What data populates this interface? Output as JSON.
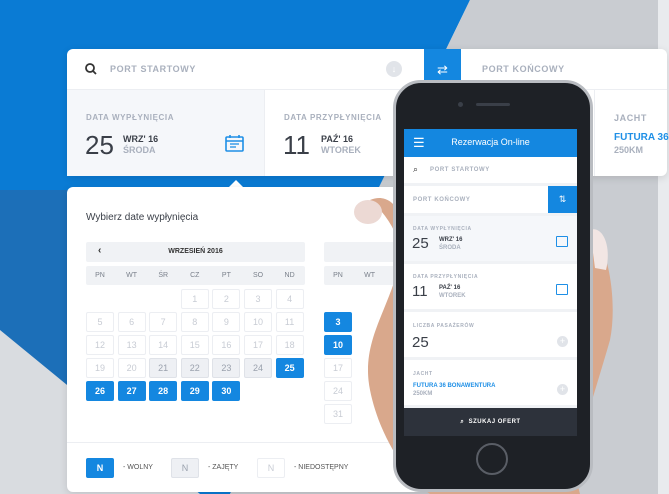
{
  "colors": {
    "accent": "#1487e0",
    "dark": "#2d323b"
  },
  "desktop": {
    "search": {
      "icon": "search-icon",
      "placeholder": "PORT STARTOWY"
    },
    "swap_icon": "swap-arrows-icon",
    "port_end": "PORT KOŃCOWY",
    "departure": {
      "label": "DATA WYPŁYNIĘCIA",
      "day": "25",
      "month": "WRZ' 16",
      "weekday": "ŚRODA"
    },
    "arrival": {
      "label": "DATA PRZYPŁYNIĘCIA",
      "day": "11",
      "month": "PAŹ' 16",
      "weekday": "WTOREK"
    },
    "yacht": {
      "label": "JACHT",
      "name": "FUTURA 36",
      "distance": "250KM"
    },
    "picker_title": "Wybierz date wypłynięcia",
    "calendar1": {
      "title": "WRZESIEŃ 2016",
      "weekdays": [
        "PN",
        "WT",
        "ŚR",
        "CZ",
        "PT",
        "SO",
        "ND"
      ],
      "offset": 3,
      "days": [
        {
          "d": "1",
          "s": "na"
        },
        {
          "d": "2",
          "s": "na"
        },
        {
          "d": "3",
          "s": "na"
        },
        {
          "d": "4",
          "s": "na"
        },
        {
          "d": "5",
          "s": "na"
        },
        {
          "d": "6",
          "s": "na"
        },
        {
          "d": "7",
          "s": "na"
        },
        {
          "d": "8",
          "s": "na"
        },
        {
          "d": "9",
          "s": "na"
        },
        {
          "d": "10",
          "s": "na"
        },
        {
          "d": "11",
          "s": "na"
        },
        {
          "d": "12",
          "s": "na"
        },
        {
          "d": "13",
          "s": "na"
        },
        {
          "d": "14",
          "s": "na"
        },
        {
          "d": "15",
          "s": "na"
        },
        {
          "d": "16",
          "s": "na"
        },
        {
          "d": "17",
          "s": "na"
        },
        {
          "d": "18",
          "s": "na"
        },
        {
          "d": "19",
          "s": "na"
        },
        {
          "d": "20",
          "s": "na"
        },
        {
          "d": "21",
          "s": "busy"
        },
        {
          "d": "22",
          "s": "busy"
        },
        {
          "d": "23",
          "s": "busy"
        },
        {
          "d": "24",
          "s": "busy"
        },
        {
          "d": "25",
          "s": "free"
        },
        {
          "d": "26",
          "s": "free"
        },
        {
          "d": "27",
          "s": "free"
        },
        {
          "d": "28",
          "s": "free"
        },
        {
          "d": "29",
          "s": "free"
        },
        {
          "d": "30",
          "s": "free"
        }
      ]
    },
    "calendar2": {
      "weekdays": [
        "PN",
        "WT"
      ],
      "col1": [
        {
          "d": "3",
          "s": "free"
        },
        {
          "d": "10",
          "s": "free"
        },
        {
          "d": "17",
          "s": "na"
        },
        {
          "d": "24",
          "s": "na"
        },
        {
          "d": "31",
          "s": "na"
        }
      ]
    },
    "legend": [
      {
        "n": "N",
        "s": "free",
        "label": "- WOLNY"
      },
      {
        "n": "N",
        "s": "busy",
        "label": "- ZAJĘTY"
      },
      {
        "n": "N",
        "s": "na",
        "label": "- NIEDOSTĘPNY"
      }
    ]
  },
  "mobile": {
    "title": "Rezerwacja On-line",
    "menu_icon": "hamburger-icon",
    "port_start": "PORT STARTOWY",
    "port_end": "PORT KOŃCOWY",
    "departure": {
      "label": "DATA WYPŁYNIĘCIA",
      "day": "25",
      "month": "WRZ' 16",
      "weekday": "ŚRODA"
    },
    "arrival": {
      "label": "DATA PRZYPŁYNIĘCIA",
      "day": "11",
      "month": "PAŹ' 16",
      "weekday": "WTOREK"
    },
    "passengers": {
      "label": "LICZBA PASAŻERÓW",
      "value": "25"
    },
    "yacht": {
      "label": "JACHT",
      "name": "FUTURA 36 BONAWENTURA",
      "distance": "250KM"
    },
    "search_button": "SZUKAJ OFERT"
  }
}
